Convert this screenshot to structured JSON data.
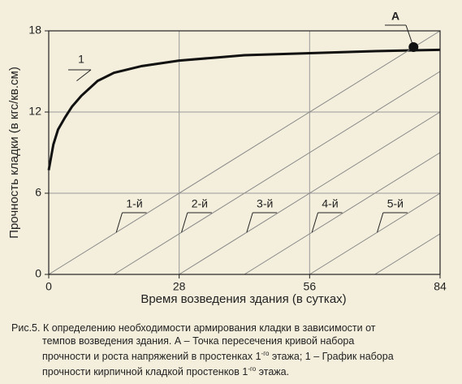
{
  "chart_data": {
    "type": "line",
    "x_label": "Время возведения здания (в сутках)",
    "y_label": "Прочность кладки (в кгс/кв.см)",
    "xlim": [
      0,
      84
    ],
    "xticks": [
      0,
      28,
      56,
      84
    ],
    "ylim": [
      0,
      18
    ],
    "yticks": [
      0,
      6,
      12,
      18
    ],
    "grid": true,
    "series": [
      {
        "name": "1",
        "color": "#111111",
        "x": [
          0,
          1,
          2,
          3.5,
          5,
          7,
          10.5,
          14,
          20,
          28,
          35,
          42,
          56,
          70,
          84
        ],
        "values": [
          7.7,
          9.6,
          10.7,
          11.6,
          12.4,
          13.2,
          14.3,
          14.9,
          15.4,
          15.8,
          16.0,
          16.2,
          16.35,
          16.5,
          16.6
        ]
      },
      {
        "name": "1-й",
        "color": "#888888",
        "x": [
          0,
          84
        ],
        "values": [
          0,
          18
        ]
      },
      {
        "name": "2-й",
        "color": "#888888",
        "x": [
          14,
          84
        ],
        "values": [
          0,
          15
        ]
      },
      {
        "name": "3-й",
        "color": "#888888",
        "x": [
          28,
          84
        ],
        "values": [
          0,
          12
        ]
      },
      {
        "name": "4-й",
        "color": "#888888",
        "x": [
          42,
          84
        ],
        "values": [
          0,
          9
        ]
      },
      {
        "name": "5-й",
        "color": "#888888",
        "x": [
          56,
          84
        ],
        "values": [
          0,
          6
        ]
      },
      {
        "name": null,
        "color": "#888888",
        "x": [
          70,
          84
        ],
        "values": [
          0,
          3
        ]
      }
    ],
    "point": {
      "label": "А",
      "x": 78.3,
      "y": 16.8,
      "color": "#111111"
    }
  },
  "caption": [
    [
      "Рис.5. К определению необходимости армирования кладки в зависимости от"
    ],
    [
      "темпов возведения здания. А – Точка пересечения кривой набора"
    ],
    [
      "прочности и роста напряжений в простенках 1",
      "-го",
      " этажа; 1 – График набора"
    ],
    [
      "прочности кирпичной кладкой простенков 1",
      "-го",
      " этажа."
    ]
  ]
}
